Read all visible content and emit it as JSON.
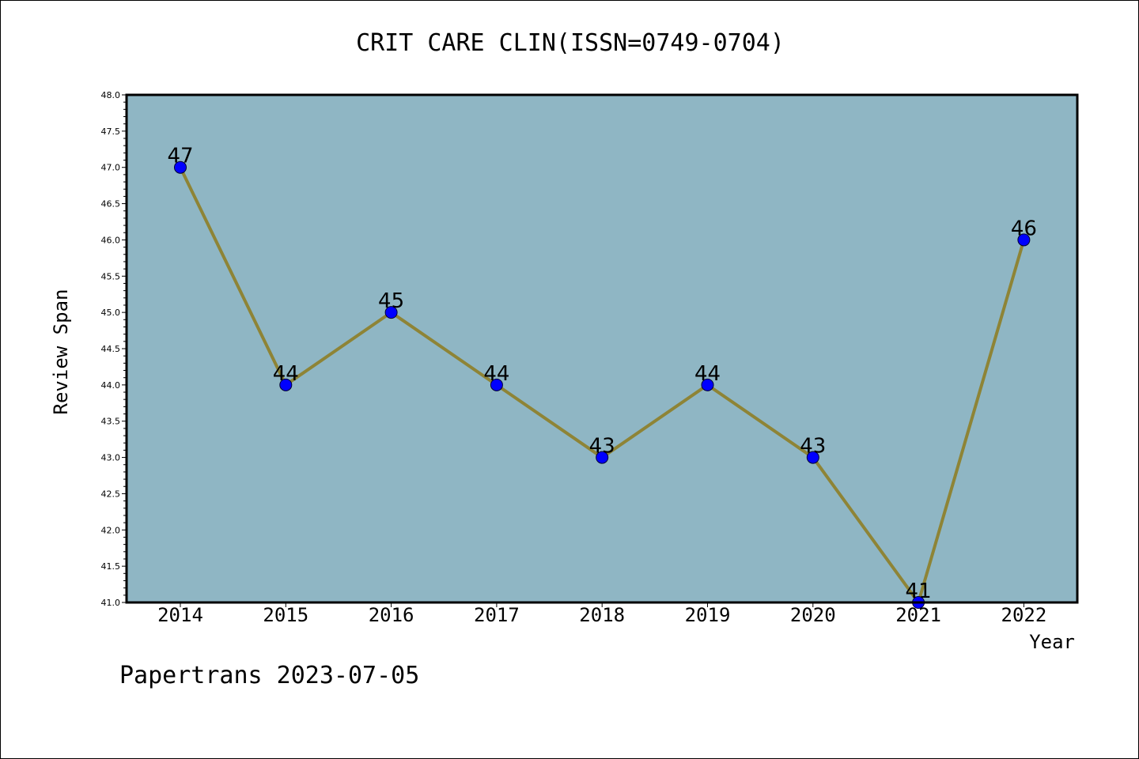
{
  "title": "CRIT CARE CLIN(ISSN=0749-0704)",
  "footer": "Papertrans 2023-07-05",
  "colors": {
    "plot_background": "#8fb6c4",
    "line": "#8e8436",
    "marker": "#0000ff",
    "axis": "#000000"
  },
  "chart_data": {
    "type": "line",
    "title": "CRIT CARE CLIN(ISSN=0749-0704)",
    "xlabel": "Year",
    "ylabel": "Review Span",
    "categories": [
      "2014",
      "2015",
      "2016",
      "2017",
      "2018",
      "2019",
      "2020",
      "2021",
      "2022"
    ],
    "series": [
      {
        "values": [
          47,
          44,
          45,
          44,
          43,
          44,
          43,
          41,
          46
        ]
      }
    ],
    "data_labels": [
      "47",
      "44",
      "45",
      "44",
      "43",
      "44",
      "43",
      "41",
      "46"
    ],
    "ylim": [
      41.0,
      48.0
    ],
    "yticks": [
      "41.0",
      "41.5",
      "42.0",
      "42.5",
      "43.0",
      "43.5",
      "44.0",
      "44.5",
      "45.0",
      "45.5",
      "46.0",
      "46.5",
      "47.0",
      "47.5",
      "48.0"
    ],
    "grid": false,
    "legend": "none"
  }
}
